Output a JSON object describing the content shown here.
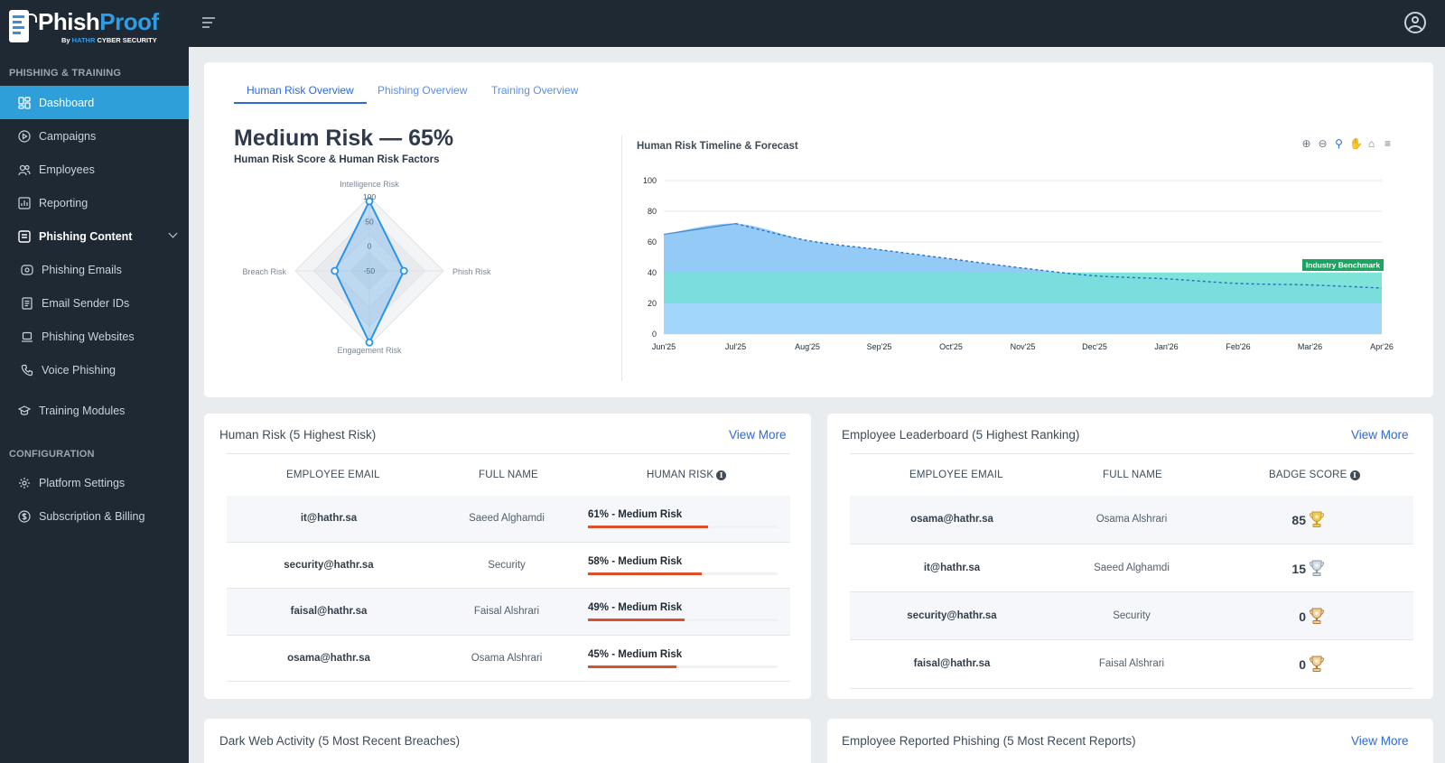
{
  "brand": {
    "name_part1": "Phish",
    "name_part2": "Proof",
    "by_prefix": "By ",
    "by_company": "HATHR",
    "by_suffix": " CYBER SECURITY"
  },
  "sidebar": {
    "section1": "PHISHING & TRAINING",
    "section2": "CONFIGURATION",
    "items": [
      {
        "label": "Dashboard",
        "icon": "dashboard-icon"
      },
      {
        "label": "Campaigns",
        "icon": "play-circle-icon"
      },
      {
        "label": "Employees",
        "icon": "users-icon"
      },
      {
        "label": "Reporting",
        "icon": "bar-chart-icon"
      },
      {
        "label": "Phishing Content",
        "icon": "inbox-icon"
      },
      {
        "label": "Phishing Emails",
        "icon": "mail-icon"
      },
      {
        "label": "Email Sender IDs",
        "icon": "id-card-icon"
      },
      {
        "label": "Phishing Websites",
        "icon": "laptop-icon"
      },
      {
        "label": "Voice Phishing",
        "icon": "phone-icon"
      },
      {
        "label": "Training Modules",
        "icon": "graduation-cap-icon"
      },
      {
        "label": "Platform Settings",
        "icon": "gear-icon"
      },
      {
        "label": "Subscription & Billing",
        "icon": "dollar-icon"
      }
    ]
  },
  "tabs": [
    "Human Risk Overview",
    "Phishing Overview",
    "Training Overview"
  ],
  "risk_summary": {
    "title": "Medium Risk — 65%",
    "subtitle": "Human Risk Score & Human Risk Factors"
  },
  "chart_data": [
    {
      "type": "radar",
      "axes": [
        "Intelligence Risk",
        "Phish Risk",
        "Engagement Risk",
        "Breach Risk"
      ],
      "tick_labels": [
        "100",
        "50",
        "0",
        "-50"
      ],
      "range": [
        -50,
        100
      ],
      "values": [
        91,
        20,
        95,
        20
      ],
      "color": "#2a95e8"
    },
    {
      "type": "area",
      "title": "Human Risk Timeline & Forecast",
      "categories": [
        "Jun'25",
        "Jul'25",
        "Aug'25",
        "Sep'25",
        "Oct'25",
        "Nov'25",
        "Dec'25",
        "Jan'26",
        "Feb'26",
        "Mar'26",
        "Apr'26"
      ],
      "ylim": [
        0,
        100
      ],
      "yticks": [
        0,
        20,
        40,
        60,
        80,
        100
      ],
      "series": [
        {
          "values": [
            65,
            72,
            61,
            55,
            49,
            43,
            38,
            36,
            33,
            32,
            30
          ]
        }
      ],
      "bands": [
        {
          "from": 0,
          "to": 20,
          "color": "#a6d8fb"
        },
        {
          "from": 20,
          "to": 40,
          "color": "#77e0d9"
        },
        {
          "label": "Industry Benchmark",
          "from": 40,
          "to": 40,
          "color": "#1aa561"
        }
      ],
      "forecast_from": "Jul'25",
      "colors": {
        "area": "#8ec8f6",
        "line": "#2a6fb8"
      }
    }
  ],
  "human_risk_table": {
    "title": "Human Risk (5 Highest Risk)",
    "view_more": "View More",
    "headers": [
      "EMPLOYEE EMAIL",
      "FULL NAME",
      "HUMAN RISK"
    ],
    "rows": [
      {
        "email": "it@hathr.sa",
        "name": "Saeed Alghamdi",
        "risk": "61% - Medium Risk",
        "pct": 61
      },
      {
        "email": "security@hathr.sa",
        "name": "Security",
        "risk": "58% - Medium Risk",
        "pct": 58
      },
      {
        "email": "faisal@hathr.sa",
        "name": "Faisal Alshrari",
        "risk": "49% - Medium Risk",
        "pct": 49
      },
      {
        "email": "osama@hathr.sa",
        "name": "Osama Alshrari",
        "risk": "45% - Medium Risk",
        "pct": 45
      }
    ]
  },
  "leaderboard": {
    "title": "Employee Leaderboard (5 Highest Ranking)",
    "view_more": "View More",
    "headers": [
      "EMPLOYEE EMAIL",
      "FULL NAME",
      "BADGE SCORE"
    ],
    "rows": [
      {
        "email": "osama@hathr.sa",
        "name": "Osama Alshrari",
        "score": "85",
        "trophy": "gold"
      },
      {
        "email": "it@hathr.sa",
        "name": "Saeed Alghamdi",
        "score": "15",
        "trophy": "silver"
      },
      {
        "email": "security@hathr.sa",
        "name": "Security",
        "score": "0",
        "trophy": "bronze"
      },
      {
        "email": "faisal@hathr.sa",
        "name": "Faisal Alshrari",
        "score": "0",
        "trophy": "bronze"
      }
    ]
  },
  "dark_web": {
    "title": "Dark Web Activity (5 Most Recent Breaches)"
  },
  "reported": {
    "title": "Employee Reported Phishing (5 Most Recent Reports)",
    "view_more": "View More"
  }
}
